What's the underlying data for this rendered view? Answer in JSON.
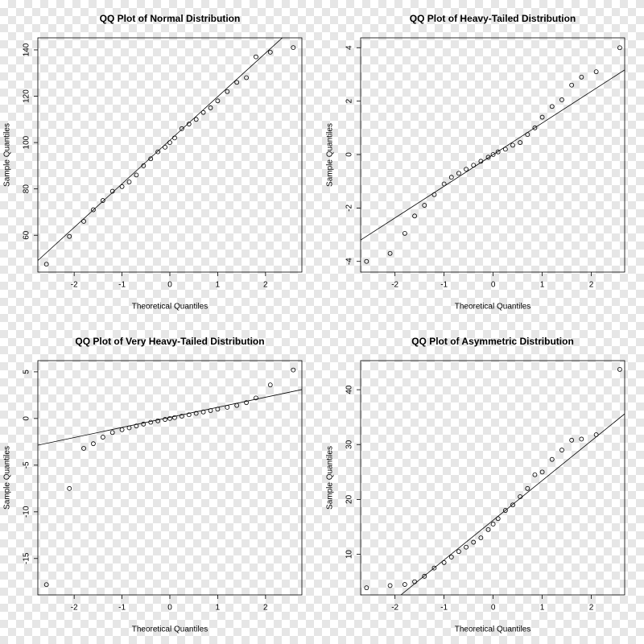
{
  "chart_data": [
    {
      "type": "scatter",
      "title": "QQ Plot of Normal Distribution",
      "x_label": "Theoretical Quantiles",
      "y_label": "Sample Quantiles",
      "x": [
        -2.58,
        -2.1,
        -1.8,
        -1.6,
        -1.4,
        -1.2,
        -1.0,
        -0.85,
        -0.7,
        -0.55,
        -0.4,
        -0.25,
        -0.1,
        0,
        0.1,
        0.25,
        0.4,
        0.55,
        0.7,
        0.85,
        1.0,
        1.2,
        1.4,
        1.6,
        1.8,
        2.1,
        2.58
      ],
      "y": [
        47.5,
        59.5,
        66,
        71,
        75,
        79,
        81,
        83,
        86,
        90,
        93,
        96,
        98,
        100,
        102,
        106,
        108,
        110,
        113,
        115,
        118,
        122,
        126,
        128,
        137,
        139,
        141
      ],
      "reference_line": {
        "x": [
          -2.76,
          2.76
        ],
        "y": [
          49.1,
          152.9
        ]
      },
      "xlim": [
        -2.76,
        2.76
      ],
      "ylim": [
        44.1,
        145.2
      ],
      "xticks": [
        -2,
        -1,
        0,
        1,
        2
      ],
      "yticks": [
        60,
        80,
        100,
        120,
        140
      ],
      "color": "#000000"
    },
    {
      "type": "scatter",
      "title": "QQ Plot of Heavy-Tailed Distribution",
      "x_label": "Theoretical Quantiles",
      "y_label": "Sample Quantiles",
      "x": [
        -2.58,
        -2.1,
        -1.8,
        -1.6,
        -1.4,
        -1.2,
        -1.0,
        -0.85,
        -0.7,
        -0.55,
        -0.4,
        -0.25,
        -0.1,
        0,
        0.1,
        0.25,
        0.4,
        0.55,
        0.7,
        0.85,
        1.0,
        1.2,
        1.4,
        1.6,
        1.8,
        2.1,
        2.58
      ],
      "y": [
        -4,
        -3.7,
        -2.95,
        -2.3,
        -1.9,
        -1.5,
        -1.1,
        -0.85,
        -0.7,
        -0.55,
        -0.4,
        -0.25,
        -0.1,
        0,
        0.1,
        0.2,
        0.35,
        0.45,
        0.75,
        1.0,
        1.4,
        1.8,
        2.05,
        2.6,
        2.9,
        3.1,
        4
      ],
      "reference_line": {
        "x": [
          -2.7,
          2.68
        ],
        "y": [
          -3.2,
          3.17
        ]
      },
      "xlim": [
        -2.7,
        2.68
      ],
      "ylim": [
        -4.4,
        4.37
      ],
      "xticks": [
        -2,
        -1,
        0,
        1,
        2
      ],
      "yticks": [
        -4,
        -2,
        0,
        2,
        4
      ],
      "color": "#000000"
    },
    {
      "type": "scatter",
      "title": "QQ Plot of Very Heavy-Tailed Distribution",
      "x_label": "Theoretical Quantiles",
      "y_label": "Sample Quantiles",
      "x": [
        -2.58,
        -2.1,
        -1.8,
        -1.6,
        -1.4,
        -1.2,
        -1.0,
        -0.85,
        -0.7,
        -0.55,
        -0.4,
        -0.25,
        -0.1,
        0,
        0.1,
        0.25,
        0.4,
        0.55,
        0.7,
        0.85,
        1.0,
        1.2,
        1.4,
        1.6,
        1.8,
        2.1,
        2.58
      ],
      "y": [
        -17.8,
        -7.5,
        -3.2,
        -2.7,
        -2,
        -1.5,
        -1.2,
        -1,
        -0.8,
        -0.6,
        -0.4,
        -0.25,
        -0.1,
        0,
        0.1,
        0.25,
        0.4,
        0.55,
        0.7,
        0.85,
        1.0,
        1.2,
        1.4,
        1.7,
        2.2,
        3.6,
        5.2
      ],
      "reference_line": {
        "x": [
          -2.76,
          2.76
        ],
        "y": [
          -2.86,
          3.1
        ]
      },
      "xlim": [
        -2.76,
        2.76
      ],
      "ylim": [
        -18.9,
        6.2
      ],
      "xticks": [
        -2,
        -1,
        0,
        1,
        2
      ],
      "yticks": [
        -15,
        -10,
        -5,
        0,
        5
      ],
      "color": "#000000"
    },
    {
      "type": "scatter",
      "title": "QQ Plot of Asymmetric Distribution",
      "x_label": "Theoretical Quantiles",
      "y_label": "Sample Quantiles",
      "x": [
        -2.58,
        -2.1,
        -1.8,
        -1.6,
        -1.4,
        -1.2,
        -1.0,
        -0.85,
        -0.7,
        -0.55,
        -0.4,
        -0.25,
        -0.1,
        0,
        0.1,
        0.25,
        0.4,
        0.55,
        0.7,
        0.85,
        1.0,
        1.2,
        1.4,
        1.6,
        1.8,
        2.1,
        2.58
      ],
      "y": [
        3.9,
        4.3,
        4.5,
        5,
        6,
        7.5,
        8.5,
        9.5,
        10.5,
        11.3,
        12.2,
        13,
        14.5,
        15.5,
        16.5,
        18,
        19,
        20.5,
        22,
        24.5,
        25,
        27.3,
        29,
        30.8,
        31,
        31.8,
        43.7
      ],
      "reference_line": {
        "x": [
          -1.88,
          2.68
        ],
        "y": [
          2.6,
          35.6
        ]
      },
      "xlim": [
        -2.7,
        2.68
      ],
      "ylim": [
        2.6,
        45.3
      ],
      "xticks": [
        -2,
        -1,
        0,
        1,
        2
      ],
      "yticks": [
        10,
        20,
        30,
        40
      ],
      "color": "#000000"
    }
  ]
}
